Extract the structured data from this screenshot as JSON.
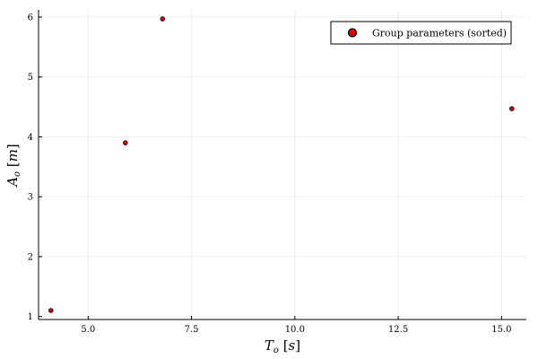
{
  "chart_data": {
    "type": "scatter",
    "xlabel": "T_o [s]",
    "ylabel": "A_o [m]",
    "xlim": [
      3.8,
      15.6
    ],
    "ylim": [
      0.95,
      6.12
    ],
    "xticks": [
      5.0,
      7.5,
      10.0,
      12.5,
      15.0
    ],
    "xtick_labels": [
      "5.0",
      "7.5",
      "10.0",
      "12.5",
      "15.0"
    ],
    "yticks": [
      1,
      2,
      3,
      4,
      5,
      6
    ],
    "ytick_labels": [
      "1",
      "2",
      "3",
      "4",
      "5",
      "6"
    ],
    "grid": true,
    "legend_position": "top-right",
    "series": [
      {
        "name": "Group parameters (sorted)",
        "color": "#e00000",
        "points": [
          {
            "x": 4.1,
            "y": 1.1
          },
          {
            "x": 5.9,
            "y": 3.9
          },
          {
            "x": 6.8,
            "y": 5.97
          },
          {
            "x": 15.25,
            "y": 4.47
          }
        ]
      }
    ]
  }
}
